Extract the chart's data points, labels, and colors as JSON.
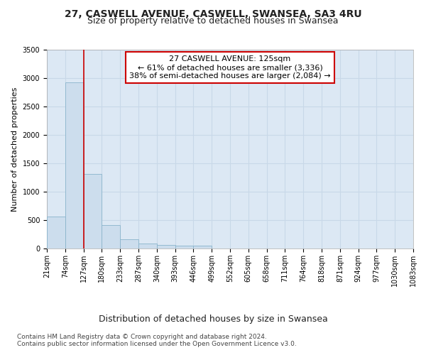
{
  "title": "27, CASWELL AVENUE, CASWELL, SWANSEA, SA3 4RU",
  "subtitle": "Size of property relative to detached houses in Swansea",
  "xlabel": "Distribution of detached houses by size in Swansea",
  "ylabel": "Number of detached properties",
  "bar_color": "#ccdded",
  "bar_edge_color": "#8ab4cc",
  "grid_color": "#c8d8e8",
  "background_color": "#dce8f4",
  "annotation_box_color": "#cc0000",
  "annotation_line1": "27 CASWELL AVENUE: 125sqm",
  "annotation_line2": "← 61% of detached houses are smaller (3,336)",
  "annotation_line3": "38% of semi-detached houses are larger (2,084) →",
  "property_line_color": "#cc0000",
  "bins": [
    21,
    74,
    127,
    180,
    233,
    287,
    340,
    393,
    446,
    499,
    552,
    605,
    658,
    711,
    764,
    818,
    871,
    924,
    977,
    1030,
    1083
  ],
  "bin_labels": [
    "21sqm",
    "74sqm",
    "127sqm",
    "180sqm",
    "233sqm",
    "287sqm",
    "340sqm",
    "393sqm",
    "446sqm",
    "499sqm",
    "552sqm",
    "605sqm",
    "658sqm",
    "711sqm",
    "764sqm",
    "818sqm",
    "871sqm",
    "924sqm",
    "977sqm",
    "1030sqm",
    "1083sqm"
  ],
  "bar_heights": [
    560,
    2920,
    1310,
    415,
    165,
    90,
    60,
    55,
    50,
    0,
    0,
    0,
    0,
    0,
    0,
    0,
    0,
    0,
    0,
    0
  ],
  "ylim": [
    0,
    3500
  ],
  "yticks": [
    0,
    500,
    1000,
    1500,
    2000,
    2500,
    3000,
    3500
  ],
  "footer_text": "Contains HM Land Registry data © Crown copyright and database right 2024.\nContains public sector information licensed under the Open Government Licence v3.0.",
  "title_fontsize": 10,
  "subtitle_fontsize": 9,
  "xlabel_fontsize": 9,
  "ylabel_fontsize": 8,
  "tick_fontsize": 7,
  "annotation_fontsize": 8,
  "footer_fontsize": 6.5
}
